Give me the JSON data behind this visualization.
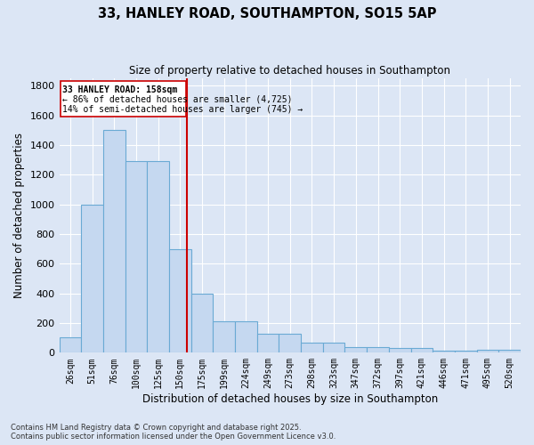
{
  "title_line1": "33, HANLEY ROAD, SOUTHAMPTON, SO15 5AP",
  "title_line2": "Size of property relative to detached houses in Southampton",
  "xlabel": "Distribution of detached houses by size in Southampton",
  "ylabel": "Number of detached properties",
  "categories": [
    "26sqm",
    "51sqm",
    "76sqm",
    "100sqm",
    "125sqm",
    "150sqm",
    "175sqm",
    "199sqm",
    "224sqm",
    "249sqm",
    "273sqm",
    "298sqm",
    "323sqm",
    "347sqm",
    "372sqm",
    "397sqm",
    "421sqm",
    "446sqm",
    "471sqm",
    "495sqm",
    "520sqm"
  ],
  "values": [
    105,
    1000,
    1500,
    1290,
    1290,
    700,
    400,
    210,
    210,
    130,
    130,
    70,
    70,
    40,
    40,
    30,
    30,
    15,
    15,
    20,
    20
  ],
  "bar_color": "#c5d8f0",
  "bar_edge_color": "#6aaad4",
  "fig_bg_color": "#dce6f5",
  "ax_bg_color": "#dce6f5",
  "grid_color": "#ffffff",
  "ylim": [
    0,
    1850
  ],
  "yticks": [
    0,
    200,
    400,
    600,
    800,
    1000,
    1200,
    1400,
    1600,
    1800
  ],
  "vline_color": "#cc0000",
  "annotation_line1": "33 HANLEY ROAD: 158sqm",
  "annotation_line2": "← 86% of detached houses are smaller (4,725)",
  "annotation_line3": "14% of semi-detached houses are larger (745) →",
  "footer_line1": "Contains HM Land Registry data © Crown copyright and database right 2025.",
  "footer_line2": "Contains public sector information licensed under the Open Government Licence v3.0."
}
